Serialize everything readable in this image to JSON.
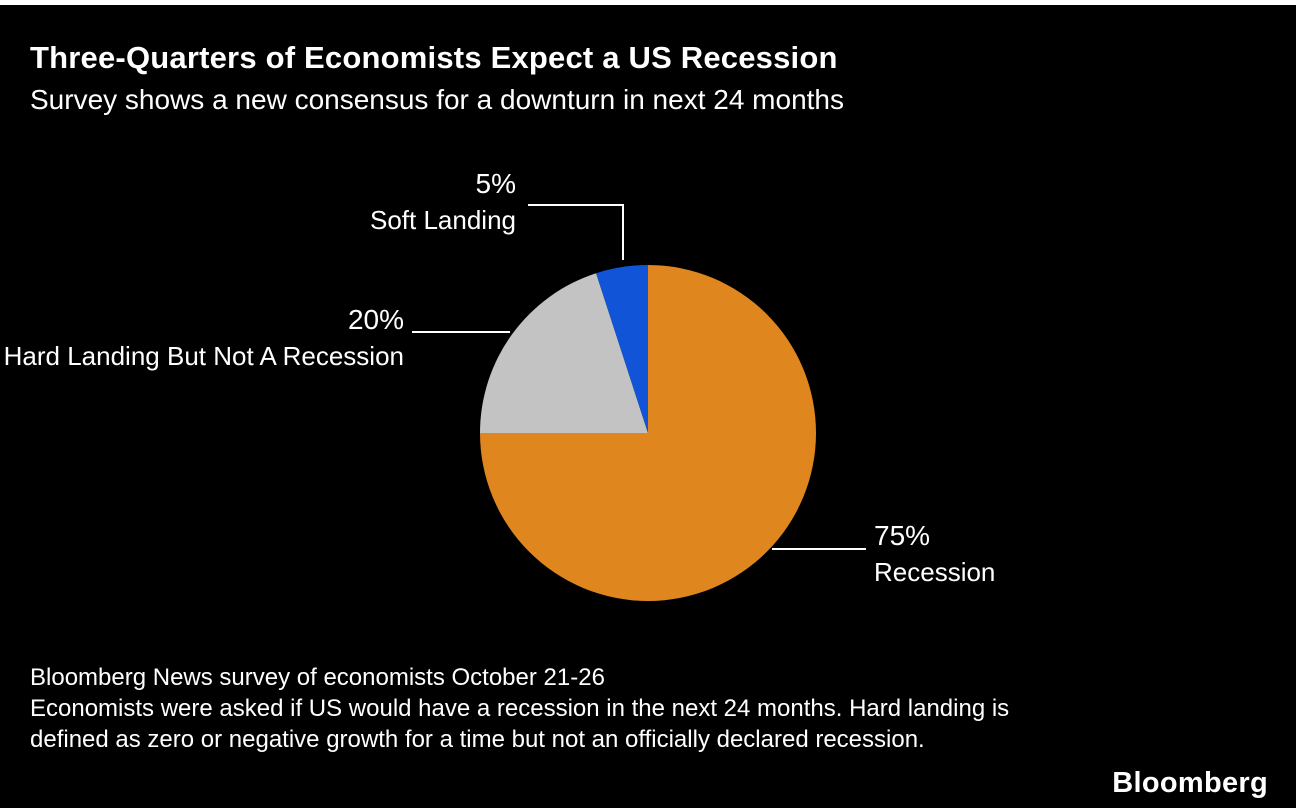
{
  "header": {
    "title": "Three-Quarters of Economists Expect a US Recession",
    "subtitle": "Survey shows a new consensus for a downturn in next 24 months"
  },
  "chart_data": {
    "type": "pie",
    "title": "Three-Quarters of Economists Expect a US Recession",
    "subtitle": "Survey shows a new consensus for a downturn in next 24 months",
    "start_angle_deg": 0,
    "direction": "clockwise",
    "slices": [
      {
        "label": "Recession",
        "value": 75,
        "percent_label": "75%",
        "color": "#E0861E"
      },
      {
        "label": "Hard Landing But Not A Recession",
        "value": 20,
        "percent_label": "20%",
        "color": "#C3C3C3"
      },
      {
        "label": "Soft Landing",
        "value": 5,
        "percent_label": "5%",
        "color": "#1254D8"
      }
    ]
  },
  "footer": {
    "source": "Bloomberg News survey of economists October 21-26",
    "note": "Economists were asked if US would have a recession in the next 24 months. Hard landing is defined as zero or negative growth for a time but not an officially declared recession.",
    "logo": "Bloomberg"
  }
}
